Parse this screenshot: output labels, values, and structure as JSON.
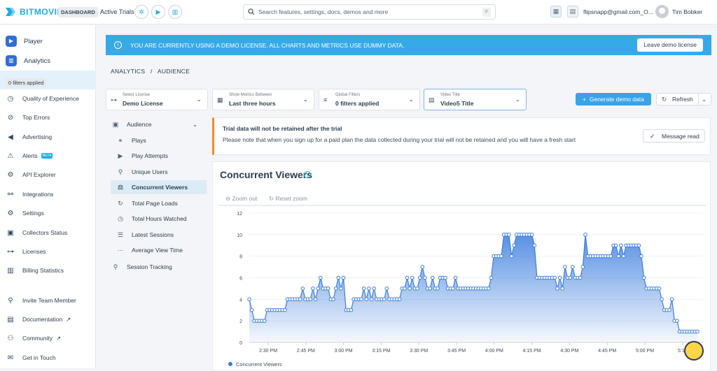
{
  "header": {
    "brand": "BITMOVIN",
    "badge": "DASHBOARD",
    "active_trials": "Active Trials",
    "search_placeholder": "Search features, settings, docs, demos and more",
    "search_key": "F",
    "email": "flipsnapp@gmail.com_O...",
    "user": "Tim Bobker"
  },
  "sidebar": {
    "items": [
      {
        "label": "Player",
        "icon": "player-icon"
      },
      {
        "label": "Analytics",
        "icon": "analytics-icon"
      },
      {
        "label": "Quality of Experience",
        "icon": "gauge-icon"
      },
      {
        "label": "Top Errors",
        "icon": "error-icon"
      },
      {
        "label": "Advertising",
        "icon": "megaphone-icon"
      },
      {
        "label": "Alerts",
        "icon": "alerts-icon",
        "badge": "BETA"
      },
      {
        "label": "API Explorer",
        "icon": "api-icon"
      },
      {
        "label": "Integrations",
        "icon": "integrations-icon"
      },
      {
        "label": "Settings",
        "icon": "gear-icon"
      },
      {
        "label": "Collectors Status",
        "icon": "collectors-icon"
      },
      {
        "label": "Licenses",
        "icon": "licenses-icon"
      },
      {
        "label": "Billing Statistics",
        "icon": "billing-icon"
      },
      {
        "label": "Invite Team Member",
        "icon": "invite-icon"
      },
      {
        "label": "Documentation",
        "icon": "docs-icon"
      },
      {
        "label": "Community",
        "icon": "community-icon"
      },
      {
        "label": "Get in Touch",
        "icon": "contact-icon"
      }
    ],
    "tooltip": "0 filters applied"
  },
  "banner": {
    "text": "YOU ARE CURRENTLY USING A DEMO LICENSE. ALL CHARTS AND METRICS USE DUMMY DATA.",
    "button": "Leave demo license"
  },
  "breadcrumb": {
    "a": "ANALYTICS",
    "sep": "/",
    "b": "AUDIENCE"
  },
  "filters": [
    {
      "label": "Select License",
      "value": "Demo License"
    },
    {
      "label": "Show Metrics Between",
      "value": "Last three hours"
    },
    {
      "label": "Global Filters",
      "value": "0 filters applied"
    },
    {
      "label": "Video Title",
      "value": "Video5 Title"
    }
  ],
  "actions": {
    "generate": "Generate demo data",
    "refresh": "Refresh"
  },
  "subnav": {
    "group": "Audience",
    "items": [
      "Plays",
      "Play Attempts",
      "Unique Users",
      "Concurrent Viewers",
      "Total Page Loads",
      "Total Hours Watched",
      "Latest Sessions",
      "Average View Time"
    ],
    "session": "Session Tracking"
  },
  "notice": {
    "title": "Trial data will not be retained after the trial",
    "body": "Please note that when you sign up for a paid plan the data collected during your trial will not be retained and you will have a fresh start",
    "button": "Message read"
  },
  "chart": {
    "title": "Concurrent Viewers",
    "zoom_out": "Zoom out",
    "reset_zoom": "Reset zoom"
  },
  "chart_data": {
    "type": "area",
    "title": "Concurrent Viewers",
    "ylim": [
      0,
      12
    ],
    "yticks": [
      0,
      2,
      4,
      6,
      8,
      10,
      12
    ],
    "xticks": [
      "2:30 PM",
      "2:45 PM",
      "3:00 PM",
      "3:15 PM",
      "3:30 PM",
      "3:45 PM",
      "4:00 PM",
      "4:15 PM",
      "4:30 PM",
      "4:45 PM",
      "5:00 PM",
      "5:15"
    ],
    "series": [
      {
        "name": "Concurrent Viewers",
        "color": "#3b7ddd",
        "values": [
          4,
          3,
          2,
          2,
          2,
          2,
          2,
          3,
          3,
          3,
          3,
          3,
          3,
          3,
          3,
          4,
          4,
          4,
          4,
          4,
          4,
          5,
          4,
          4,
          4,
          5,
          4,
          5,
          6,
          5,
          5,
          5,
          4,
          4,
          5,
          6,
          5,
          6,
          3,
          3,
          3,
          4,
          4,
          4,
          4,
          5,
          4,
          5,
          4,
          5,
          4,
          4,
          4,
          4,
          5,
          4,
          4,
          4,
          4,
          4,
          5,
          5,
          6,
          5,
          6,
          5,
          5,
          6,
          7,
          6,
          5,
          5,
          6,
          5,
          5,
          6,
          6,
          6,
          5,
          5,
          5,
          6,
          5,
          5,
          5,
          5,
          5,
          5,
          5,
          5,
          5,
          5,
          5,
          5,
          5,
          6,
          8,
          8,
          8,
          8,
          10,
          10,
          10,
          8,
          9,
          10,
          10,
          10,
          10,
          10,
          10,
          10,
          9,
          6,
          6,
          6,
          6,
          6,
          6,
          6,
          6,
          5,
          6,
          5,
          7,
          6,
          6,
          7,
          6,
          6,
          6,
          7,
          10,
          8,
          8,
          8,
          8,
          8,
          8,
          8,
          8,
          8,
          8,
          9,
          9,
          8,
          9,
          8,
          9,
          9,
          9,
          9,
          9,
          9,
          8,
          6,
          5,
          5,
          5,
          5,
          5,
          5,
          4,
          3,
          3,
          3,
          4,
          2,
          2,
          1,
          1,
          1,
          1,
          1,
          1,
          1,
          1
        ]
      }
    ],
    "legend": "bottom-left"
  }
}
